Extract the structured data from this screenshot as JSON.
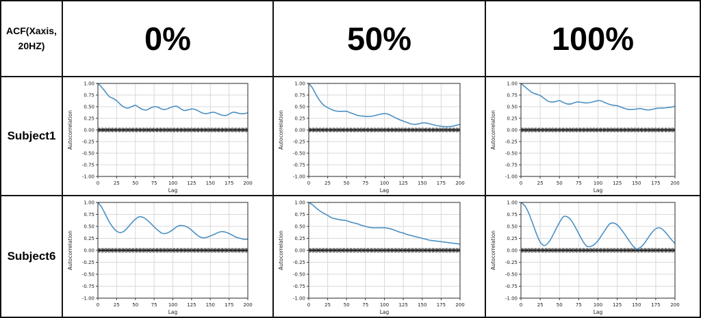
{
  "corner": {
    "line1": "ACF(Xaxis,",
    "line2": "20HZ)"
  },
  "header": {
    "columns": [
      "0%",
      "50%",
      "100%"
    ]
  },
  "rows": [
    {
      "label": "Subject1"
    },
    {
      "label": "Subject6"
    }
  ],
  "colors": {
    "line": "#4a8fc2",
    "grid": "#d8d8d8",
    "spine": "#3a3a3a",
    "band": "#a0a0a0",
    "band_dash": "#5f5f5f",
    "zero_line": "#161616",
    "tick_text": "#1a1a1a",
    "border": "#111111"
  },
  "chart_config": {
    "xlabel": "Lag",
    "ylabel": "Autocorrelation",
    "xlim": [
      0,
      200
    ],
    "ylim": [
      -1.0,
      1.0
    ],
    "xticks": [
      0,
      25,
      50,
      75,
      100,
      125,
      150,
      175,
      200
    ],
    "yticks": [
      1.0,
      0.75,
      0.5,
      0.25,
      0.0,
      -0.25,
      -0.5,
      -0.75,
      -1.0
    ],
    "band_halfwidth": 0.04,
    "grid": true,
    "lags": [
      0,
      5,
      10,
      15,
      20,
      25,
      30,
      35,
      40,
      45,
      50,
      55,
      60,
      65,
      70,
      75,
      80,
      85,
      90,
      95,
      100,
      105,
      110,
      115,
      120,
      125,
      130,
      135,
      140,
      145,
      150,
      155,
      160,
      165,
      170,
      175,
      180,
      185,
      190,
      195,
      200
    ]
  },
  "chart_data": [
    {
      "type": "line",
      "subject": "Subject1",
      "condition": "0%",
      "values": [
        1.0,
        0.92,
        0.82,
        0.72,
        0.68,
        0.63,
        0.55,
        0.49,
        0.47,
        0.5,
        0.53,
        0.48,
        0.44,
        0.43,
        0.47,
        0.5,
        0.49,
        0.45,
        0.44,
        0.47,
        0.5,
        0.51,
        0.46,
        0.42,
        0.43,
        0.45,
        0.44,
        0.4,
        0.36,
        0.35,
        0.37,
        0.38,
        0.35,
        0.32,
        0.31,
        0.34,
        0.38,
        0.37,
        0.35,
        0.35,
        0.37
      ]
    },
    {
      "type": "line",
      "subject": "Subject1",
      "condition": "50%",
      "values": [
        1.0,
        0.9,
        0.75,
        0.62,
        0.53,
        0.48,
        0.44,
        0.41,
        0.4,
        0.4,
        0.4,
        0.37,
        0.34,
        0.31,
        0.3,
        0.29,
        0.29,
        0.3,
        0.32,
        0.34,
        0.35,
        0.34,
        0.3,
        0.26,
        0.22,
        0.19,
        0.16,
        0.13,
        0.12,
        0.13,
        0.15,
        0.15,
        0.13,
        0.11,
        0.09,
        0.08,
        0.07,
        0.07,
        0.08,
        0.1,
        0.12
      ]
    },
    {
      "type": "line",
      "subject": "Subject1",
      "condition": "100%",
      "values": [
        1.0,
        0.93,
        0.86,
        0.8,
        0.77,
        0.74,
        0.68,
        0.62,
        0.6,
        0.61,
        0.63,
        0.59,
        0.56,
        0.56,
        0.59,
        0.6,
        0.59,
        0.58,
        0.59,
        0.61,
        0.63,
        0.62,
        0.58,
        0.55,
        0.53,
        0.52,
        0.49,
        0.46,
        0.44,
        0.44,
        0.45,
        0.46,
        0.44,
        0.43,
        0.44,
        0.46,
        0.47,
        0.47,
        0.48,
        0.49,
        0.51
      ]
    },
    {
      "type": "line",
      "subject": "Subject6",
      "condition": "0%",
      "values": [
        1.0,
        0.9,
        0.75,
        0.6,
        0.48,
        0.4,
        0.37,
        0.4,
        0.48,
        0.57,
        0.65,
        0.7,
        0.69,
        0.64,
        0.57,
        0.49,
        0.42,
        0.36,
        0.35,
        0.38,
        0.43,
        0.49,
        0.52,
        0.51,
        0.48,
        0.42,
        0.35,
        0.29,
        0.26,
        0.27,
        0.3,
        0.33,
        0.37,
        0.39,
        0.38,
        0.35,
        0.31,
        0.27,
        0.25,
        0.23,
        0.23
      ]
    },
    {
      "type": "line",
      "subject": "Subject6",
      "condition": "50%",
      "values": [
        1.0,
        0.95,
        0.88,
        0.82,
        0.77,
        0.73,
        0.68,
        0.66,
        0.64,
        0.63,
        0.62,
        0.59,
        0.57,
        0.55,
        0.52,
        0.5,
        0.48,
        0.47,
        0.47,
        0.47,
        0.47,
        0.46,
        0.44,
        0.41,
        0.38,
        0.36,
        0.33,
        0.31,
        0.29,
        0.27,
        0.25,
        0.23,
        0.21,
        0.2,
        0.19,
        0.18,
        0.17,
        0.16,
        0.15,
        0.14,
        0.13
      ]
    },
    {
      "type": "line",
      "subject": "Subject6",
      "condition": "100%",
      "values": [
        1.0,
        0.93,
        0.78,
        0.57,
        0.35,
        0.17,
        0.1,
        0.15,
        0.27,
        0.43,
        0.58,
        0.7,
        0.7,
        0.63,
        0.5,
        0.35,
        0.2,
        0.09,
        0.08,
        0.12,
        0.2,
        0.32,
        0.44,
        0.55,
        0.57,
        0.53,
        0.44,
        0.33,
        0.21,
        0.1,
        0.03,
        0.06,
        0.14,
        0.26,
        0.37,
        0.45,
        0.47,
        0.42,
        0.33,
        0.23,
        0.14
      ]
    }
  ]
}
